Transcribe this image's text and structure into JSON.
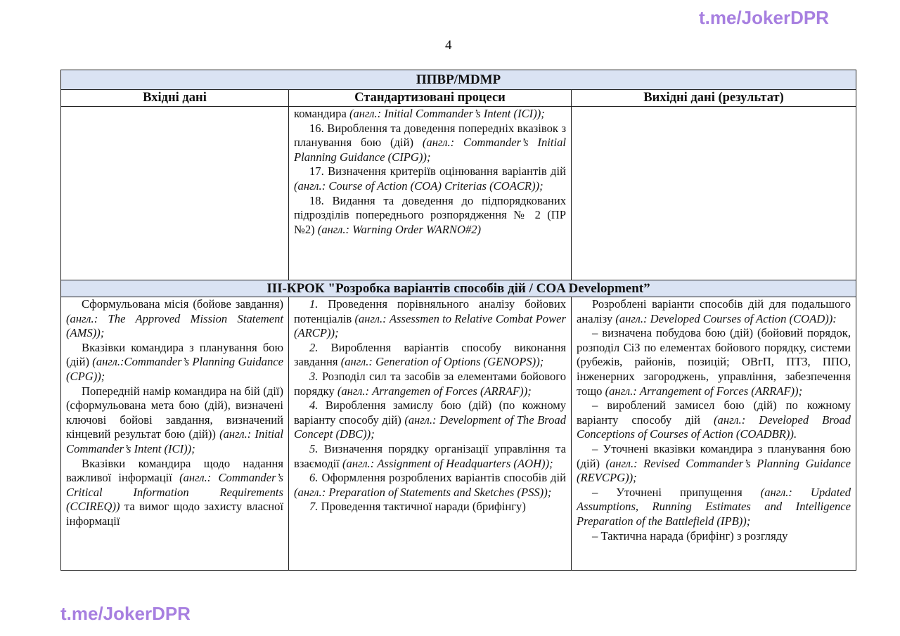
{
  "watermark": "t.me/JokerDPR",
  "page_number": "4",
  "table": {
    "title": "ППВР/MDMP",
    "columns": [
      "Вхідні дані",
      "Стандартизовані процеси",
      "Вихідні дані (результат)"
    ],
    "row1": {
      "col1": [],
      "col2": [
        {
          "indent": false,
          "segs": [
            {
              "t": "командира "
            },
            {
              "t": "(англ.: Initial Commander’s Intent (ICI));",
              "i": true
            }
          ]
        },
        {
          "segs": [
            {
              "t": "16. Вироблення та доведення попередніх вказівок з планування бою (дій) "
            },
            {
              "t": "(англ.: Commander’s Initial Planning Guidance (CIPG));",
              "i": true
            }
          ]
        },
        {
          "segs": [
            {
              "t": "17. Визначення критеріїв оцінювання варіантів дій "
            },
            {
              "t": "(англ.: Course of Action (COA) Criterias (COACR));",
              "i": true
            }
          ]
        },
        {
          "segs": [
            {
              "t": "18. Видання та доведення до підпорядкованих підрозділів попереднього розпорядження № 2 (ПР №2) "
            },
            {
              "t": "(англ.: Warning Order WARNO#2)",
              "i": true
            }
          ]
        }
      ],
      "col3": []
    },
    "step_title": "ІІІ-КРОК \"Розробка варіантів способів дій / COA Development”",
    "row2": {
      "col1": [
        {
          "segs": [
            {
              "t": "Сформульована місія (бойове завдання) "
            },
            {
              "t": "(англ.: The Approved Mission Statement (AMS));",
              "i": true
            }
          ]
        },
        {
          "segs": [
            {
              "t": "Вказівки командира з планування бою (дій) "
            },
            {
              "t": "(англ.:Commander’s Planning Guidance (CPG));",
              "i": true
            }
          ]
        },
        {
          "segs": [
            {
              "t": "Попередній намір командира на бій (дії) (сформульована мета бою (дій), визначені ключові бойові завдання, визначений кінцевий результат бою (дій)) "
            },
            {
              "t": "(англ.: Initial Commander’s Intent (ICI));",
              "i": true
            }
          ]
        },
        {
          "segs": [
            {
              "t": "Вказівки командира щодо надання важливої інформації "
            },
            {
              "t": "(англ.: Commander’s Critical Information Requirements (CCIREQ))",
              "i": true
            },
            {
              "t": " та вимог щодо захисту власної інформації"
            }
          ]
        }
      ],
      "col2": [
        {
          "segs": [
            {
              "t": "1.",
              "i": true
            },
            {
              "t": " Проведення порівняльного аналізу бойових потенціалів "
            },
            {
              "t": "(англ.: Assessmen to Relative Combat Power (ARCP));",
              "i": true
            }
          ]
        },
        {
          "segs": [
            {
              "t": "2.",
              "i": true
            },
            {
              "t": " Вироблення варіантів способу виконання завдання "
            },
            {
              "t": "(англ.: Generation of Options (GENOPS));",
              "i": true
            }
          ]
        },
        {
          "segs": [
            {
              "t": "3.",
              "i": true
            },
            {
              "t": " Розподіл сил та засобів за елементами бойового порядку "
            },
            {
              "t": "(англ.: Arrangemen of Forces (ARRAF));",
              "i": true
            }
          ]
        },
        {
          "segs": [
            {
              "t": "4.",
              "i": true
            },
            {
              "t": " Вироблення замислу бою (дій) (по кожному варіанту способу дій) "
            },
            {
              "t": "(англ.: Development of The Broad Concept (DBC));",
              "i": true
            }
          ]
        },
        {
          "segs": [
            {
              "t": "5.",
              "i": true
            },
            {
              "t": " Визначення порядку організації управління та взаємодії "
            },
            {
              "t": "(англ.: Assignment of Headquarters (AOH));",
              "i": true
            }
          ]
        },
        {
          "segs": [
            {
              "t": "6.",
              "i": true
            },
            {
              "t": " Оформлення розроблених варіантів способів дій "
            },
            {
              "t": "(англ.: Preparation of Statements and Sketches (PSS));",
              "i": true
            }
          ]
        },
        {
          "segs": [
            {
              "t": "7.",
              "i": true
            },
            {
              "t": " Проведення тактичної наради (брифінгу)"
            }
          ]
        }
      ],
      "col3": [
        {
          "segs": [
            {
              "t": "Розроблені варіанти способів дій для подальшого аналізу "
            },
            {
              "t": "(англ.: Developed Courses of Action (COAD)):",
              "i": true
            }
          ]
        },
        {
          "segs": [
            {
              "t": "–   визначена побудова бою (дій) (бойовий порядок, розподіл СіЗ по елементах бойового порядку, системи (рубежів, районів, позицій; ОВгП, ПТЗ, ППО, інженерних загороджень, управління, забезпечення тощо "
            },
            {
              "t": "(англ.: Arrangement of Forces (ARRAF));",
              "i": true
            }
          ]
        },
        {
          "segs": [
            {
              "t": "–   вироблений замисел бою (дій) по кожному варіанту способу дій "
            },
            {
              "t": "(англ.: Developed Broad Conceptions of Courses of Action (COADBR)).",
              "i": true
            }
          ]
        },
        {
          "segs": [
            {
              "t": "–   Уточнені вказівки командира з планування бою (дій) "
            },
            {
              "t": "(англ.: Revised Commander’s Planning Guidance (REVCPG));",
              "i": true
            }
          ]
        },
        {
          "segs": [
            {
              "t": "–   Уточнені припущення "
            },
            {
              "t": "(англ.: Updated Assumptions, Running Estimates and Intelligence Preparation of the Battlefield (IPB));",
              "i": true
            }
          ]
        },
        {
          "segs": [
            {
              "t": "–   Тактична нарада (брифінг) з розгляду"
            }
          ]
        }
      ]
    }
  }
}
